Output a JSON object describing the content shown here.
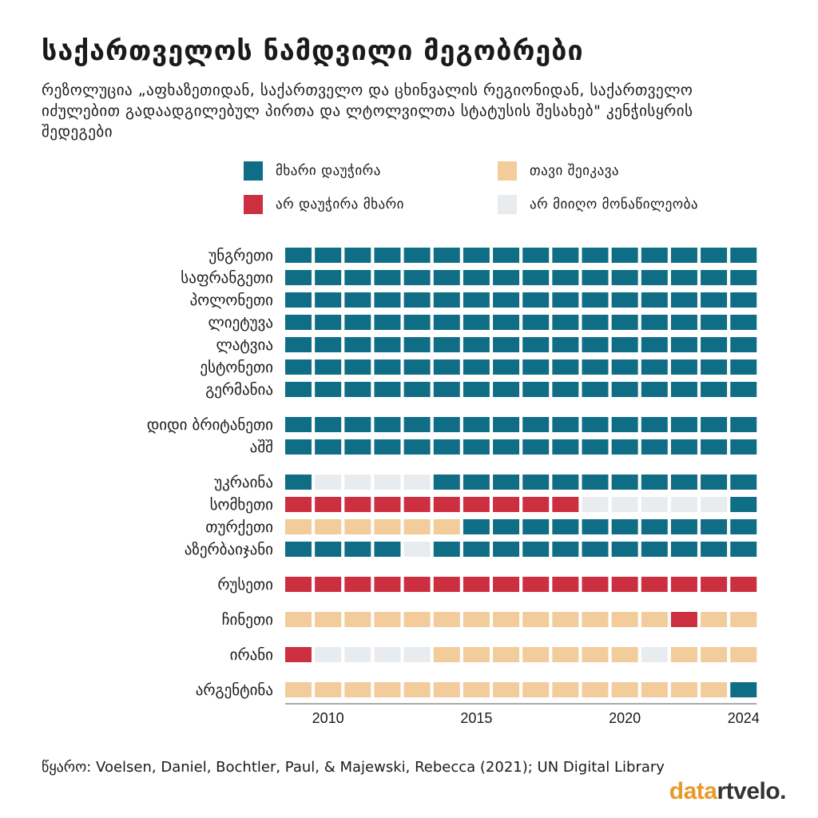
{
  "title": "საქართველოს ნამდვილი მეგობრები",
  "subtitle": "რეზოლუცია „აფხაზეთიდან, საქართველო და ცხინვალის რეგიონიდან, საქართველო იძულებით გადაადგილებულ პირთა და ლტოლვილთა სტატუსის შესახებ\" კენჭისყრის შედეგები",
  "legend": {
    "support": "მხარი დაუჭირა",
    "abstain": "თავი შეიკავა",
    "against": "არ დაუჭირა მხარი",
    "absent": "არ მიიღო მონაწილეობა"
  },
  "colors": {
    "support": "#0f6e85",
    "abstain": "#f2cc9a",
    "against": "#cc2f3f",
    "absent": "#e9ecef"
  },
  "source": "წყარო: Voelsen, Daniel, Bochtler, Paul, & Majewski, Rebecca (2021); UN Digital Library",
  "logo": {
    "part1": "data",
    "part2": "rtvelo."
  },
  "chart_data": {
    "type": "heatmap",
    "title": "საქართველოს ნამდვილი მეგობრები",
    "years": [
      2009,
      2010,
      2011,
      2012,
      2013,
      2014,
      2015,
      2016,
      2017,
      2018,
      2019,
      2020,
      2021,
      2022,
      2023,
      2024
    ],
    "x_ticks": [
      2010,
      2015,
      2020,
      2024
    ],
    "categories": [
      "support",
      "abstain",
      "against",
      "absent"
    ],
    "codes": {
      "S": "support",
      "A": "abstain",
      "X": "against",
      "N": "absent"
    },
    "groups": [
      [
        {
          "country": "უნგრეთი",
          "votes": "SSSSSSSSSSSSSSSS"
        },
        {
          "country": "საფრანგეთი",
          "votes": "SSSSSSSSSSSSSSSS"
        },
        {
          "country": "პოლონეთი",
          "votes": "SSSSSSSSSSSSSSSS"
        },
        {
          "country": "ლიეტუვა",
          "votes": "SSSSSSSSSSSSSSSS"
        },
        {
          "country": "ლატვია",
          "votes": "SSSSSSSSSSSSSSSS"
        },
        {
          "country": "ესტონეთი",
          "votes": "SSSSSSSSSSSSSSSS"
        },
        {
          "country": "გერმანია",
          "votes": "SSSSSSSSSSSSSSSS"
        }
      ],
      [
        {
          "country": "დიდი ბრიტანეთი",
          "votes": "SSSSSSSSSSSSSSSS"
        },
        {
          "country": "აშშ",
          "votes": "SSSSSSSSSSSSSSSS"
        }
      ],
      [
        {
          "country": "უკრაინა",
          "votes": "SNNNNSSSSSSSSSSS"
        },
        {
          "country": "სომხეთი",
          "votes": "XXXXXXXXXXNNNNNS"
        },
        {
          "country": "თურქეთი",
          "votes": "AAAAAASSSSSSSSSS"
        },
        {
          "country": "აზერბაიჯანი",
          "votes": "SSSSNSSSSSSSSSSS"
        }
      ],
      [
        {
          "country": "რუსეთი",
          "votes": "XXXXXXXXXXXXXXXX"
        }
      ],
      [
        {
          "country": "ჩინეთი",
          "votes": "AAAAAAAAAAAAAXAA"
        }
      ],
      [
        {
          "country": "ირანი",
          "votes": "XNNNNAAAAAAANAAA"
        }
      ],
      [
        {
          "country": "არგენტინა",
          "votes": "AAAAAAAAAAAAAAAS"
        }
      ]
    ]
  }
}
